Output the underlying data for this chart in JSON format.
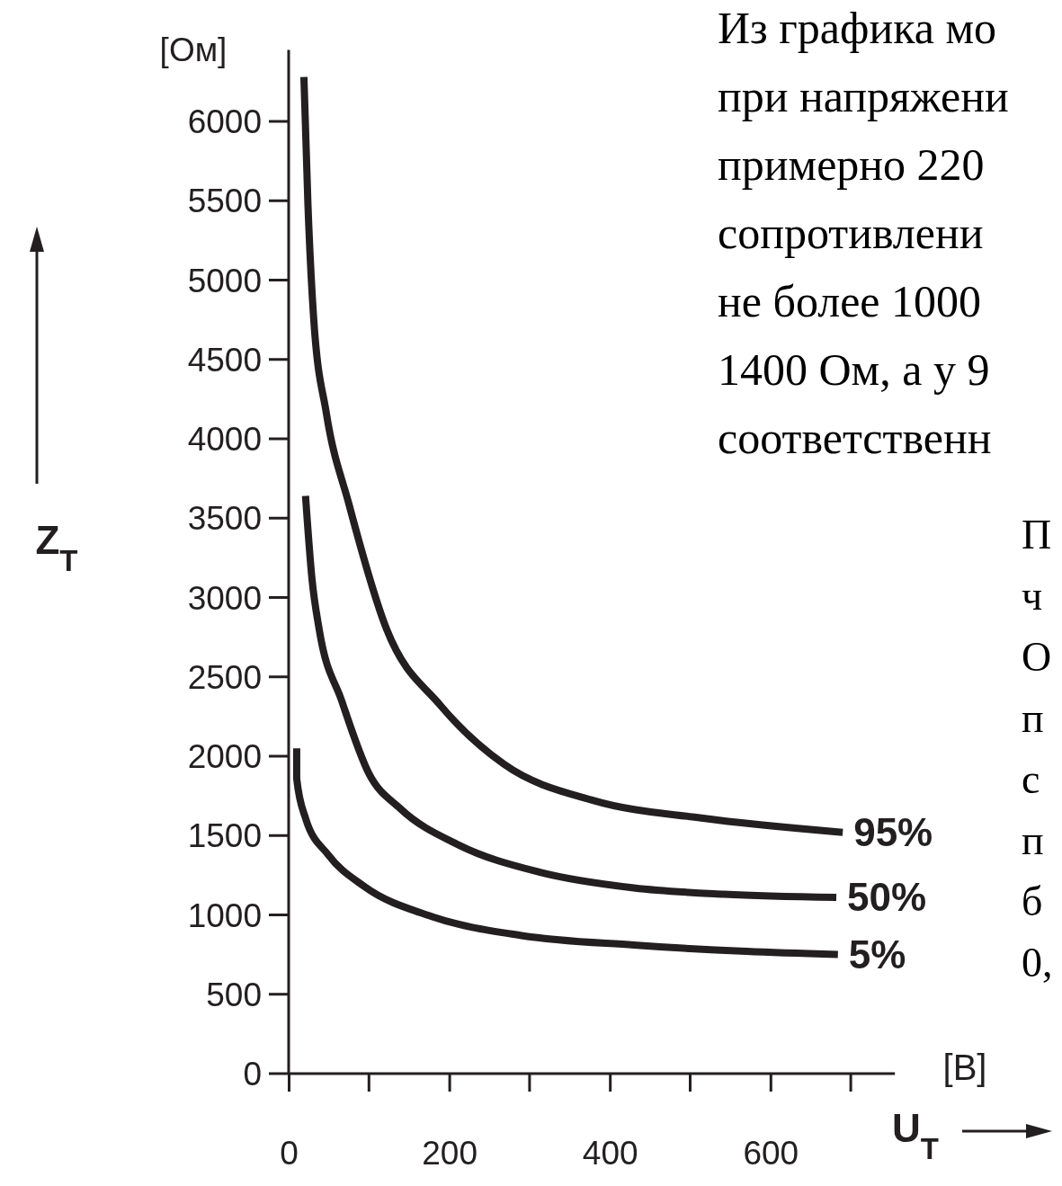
{
  "chart_data": {
    "type": "line",
    "xlabel": "U$_{T}$",
    "ylabel": "Z$_{T}$",
    "xlim": [
      0,
      755
    ],
    "ylim": [
      0,
      6450
    ],
    "xticks": [
      0,
      200,
      400,
      600
    ],
    "yticks": [
      0,
      500,
      1000,
      1500,
      2000,
      2500,
      3000,
      3500,
      4000,
      4500,
      5000,
      5500,
      6000
    ],
    "grid": false,
    "legend": false,
    "marker": "none",
    "line_style": "solid",
    "series": [
      {
        "name": "95%",
        "color": "#231f20",
        "x": [
          19,
          24,
          31,
          47,
          75,
          122,
          189,
          268,
          380,
          514,
          690
        ],
        "values": [
          6280,
          5480,
          4770,
          4160,
          3590,
          2800,
          2320,
          1950,
          1720,
          1610,
          1520
        ]
      },
      {
        "name": "50%",
        "color": "#231f20",
        "x": [
          21,
          29,
          38,
          66,
          100,
          139,
          212,
          312,
          430,
          542,
          682
        ],
        "values": [
          3640,
          3120,
          2800,
          2350,
          1890,
          1670,
          1440,
          1270,
          1170,
          1130,
          1110
        ]
      },
      {
        "name": "5%",
        "color": "#231f20",
        "x": [
          10,
          10,
          21,
          49,
          94,
          178,
          290,
          430,
          570,
          684
        ],
        "values": [
          2050,
          1860,
          1610,
          1380,
          1180,
          990,
          870,
          810,
          770,
          750
        ]
      }
    ],
    "annotations": [
      "[Ом]",
      "[В]",
      "Из графика мо",
      "при напряжени",
      "примерно 220",
      "сопротивлени",
      "не более 1000",
      "1400 Ом, а у 9",
      "соответственн",
      "П",
      "ч",
      "О",
      "п",
      "с",
      "п",
      "б",
      "0,"
    ]
  }
}
